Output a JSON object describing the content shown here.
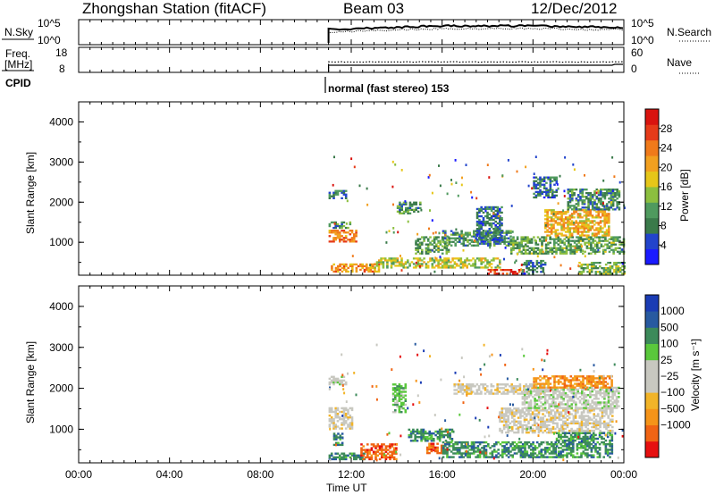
{
  "header": {
    "station": "Zhongshan Station (fitACF)",
    "beam": "Beam 03",
    "date": "12/Dec/2012"
  },
  "top_panels": {
    "nsky_label": "N.Sky",
    "nsky_ticks": [
      "10^5",
      "10^0"
    ],
    "nsearch_label": "N.Search",
    "nsearch_ticks": [
      "10^5",
      "10^0"
    ],
    "freq_label": [
      "Freq.",
      "[MHz]"
    ],
    "freq_ticks": [
      "18",
      "8"
    ],
    "nave_label": "Nave",
    "nave_ticks": [
      "60",
      "0"
    ],
    "cpid_label": "CPID",
    "cpid_text": "normal (fast stereo) 153"
  },
  "colors": {
    "power": [
      "#1a1aff",
      "#2244cc",
      "#3a7a4a",
      "#4f9a5e",
      "#8cbf3f",
      "#e6c619",
      "#f2a01f",
      "#f07a1a",
      "#e63b19",
      "#d9140f"
    ],
    "velocity": [
      "#e60f0f",
      "#f06414",
      "#f59419",
      "#f2b428",
      "#c8c8c0",
      "#c8c8c0",
      "#5ac83c",
      "#3c8a5a",
      "#285aa0",
      "#1a3cb4"
    ]
  },
  "chart_data": [
    {
      "type": "heatmap",
      "name": "power",
      "ylabel": "Slant Range [km]",
      "ylim": [
        180,
        4500
      ],
      "yticks": [
        "1000",
        "2000",
        "3000",
        "4000"
      ],
      "ytick_values": [
        1000,
        2000,
        3000,
        4000
      ],
      "xlim_hours": [
        0,
        24
      ],
      "colorbar_label": "Power [dB]",
      "colorbar_ticks": [
        "4",
        "8",
        "12",
        "16",
        "20",
        "24",
        "28"
      ],
      "colorbar_values": [
        4,
        8,
        12,
        16,
        20,
        24,
        28
      ],
      "colorbar_range": [
        0,
        32
      ],
      "regions": [
        {
          "t0": 11.0,
          "t1": 11.8,
          "r0": 2080,
          "r1": 2300,
          "v": 6
        },
        {
          "t0": 11.0,
          "t1": 11.9,
          "r0": 1340,
          "r1": 1500,
          "v": 8
        },
        {
          "t0": 11.0,
          "t1": 12.2,
          "r0": 1000,
          "r1": 1300,
          "v": 22
        },
        {
          "t0": 11.1,
          "t1": 13.2,
          "r0": 250,
          "r1": 440,
          "v": 20
        },
        {
          "t0": 13.0,
          "t1": 18.5,
          "r0": 350,
          "r1": 600,
          "v": 14
        },
        {
          "t0": 14.8,
          "t1": 16.3,
          "r0": 700,
          "r1": 1150,
          "v": 10
        },
        {
          "t0": 16.0,
          "t1": 19.0,
          "r0": 900,
          "r1": 1300,
          "v": 8
        },
        {
          "t0": 17.5,
          "t1": 18.6,
          "r0": 1000,
          "r1": 1900,
          "v": 6
        },
        {
          "t0": 18.0,
          "t1": 19.6,
          "r0": 200,
          "r1": 330,
          "v": 26
        },
        {
          "t0": 19.0,
          "t1": 24.0,
          "r0": 700,
          "r1": 1150,
          "v": 10
        },
        {
          "t0": 20.5,
          "t1": 23.3,
          "r0": 1150,
          "r1": 1800,
          "v": 18
        },
        {
          "t0": 21.5,
          "t1": 23.8,
          "r0": 1800,
          "r1": 2300,
          "v": 8
        },
        {
          "t0": 22.0,
          "t1": 24.0,
          "r0": 200,
          "r1": 500,
          "v": 12
        },
        {
          "t0": 19.5,
          "t1": 20.5,
          "r0": 200,
          "r1": 550,
          "v": 6
        },
        {
          "t0": 14.0,
          "t1": 15.0,
          "r0": 1700,
          "r1": 2000,
          "v": 8
        },
        {
          "t0": 20.0,
          "t1": 21.0,
          "r0": 2100,
          "r1": 2600,
          "v": 6
        }
      ]
    },
    {
      "type": "heatmap",
      "name": "velocity",
      "ylabel": "Slant Range [km]",
      "xlabel": "Time UT",
      "ylim": [
        180,
        4500
      ],
      "yticks": [
        "1000",
        "2000",
        "3000",
        "4000"
      ],
      "ytick_values": [
        1000,
        2000,
        3000,
        4000
      ],
      "xlim_hours": [
        0,
        24
      ],
      "xticks": [
        "00:00",
        "04:00",
        "08:00",
        "12:00",
        "16:00",
        "20:00",
        "00:00"
      ],
      "xtick_values": [
        0,
        4,
        8,
        12,
        16,
        20,
        24
      ],
      "colorbar_label": "Velocity [m s⁻¹]",
      "colorbar_ticks": [
        "1000",
        "500",
        "100",
        "25",
        "−25",
        "−100",
        "−500",
        "−1000"
      ],
      "regions": [
        {
          "t0": 11.0,
          "t1": 11.8,
          "r0": 2080,
          "r1": 2300,
          "v": 5
        },
        {
          "t0": 11.0,
          "t1": 12.0,
          "r0": 1000,
          "r1": 1500,
          "v": 4
        },
        {
          "t0": 11.0,
          "t1": 12.6,
          "r0": 250,
          "r1": 430,
          "v": 7
        },
        {
          "t0": 12.4,
          "t1": 14.0,
          "r0": 250,
          "r1": 650,
          "v": 1
        },
        {
          "t0": 14.5,
          "t1": 16.4,
          "r0": 700,
          "r1": 1000,
          "v": 7
        },
        {
          "t0": 15.3,
          "t1": 16.2,
          "r0": 400,
          "r1": 650,
          "v": 1
        },
        {
          "t0": 16.0,
          "t1": 21.0,
          "r0": 300,
          "r1": 700,
          "v": 7
        },
        {
          "t0": 16.5,
          "t1": 20.5,
          "r0": 1850,
          "r1": 2100,
          "v": 4
        },
        {
          "t0": 18.5,
          "t1": 23.5,
          "r0": 900,
          "r1": 1500,
          "v": 4
        },
        {
          "t0": 19.5,
          "t1": 23.8,
          "r0": 1500,
          "r1": 2000,
          "v": 5
        },
        {
          "t0": 20.0,
          "t1": 23.5,
          "r0": 2000,
          "r1": 2300,
          "v": 2
        },
        {
          "t0": 21.0,
          "t1": 23.5,
          "r0": 300,
          "r1": 900,
          "v": 7
        },
        {
          "t0": 11.2,
          "t1": 11.6,
          "r0": 600,
          "r1": 900,
          "v": 7
        },
        {
          "t0": 13.8,
          "t1": 14.4,
          "r0": 1400,
          "r1": 2100,
          "v": 6
        }
      ]
    }
  ]
}
